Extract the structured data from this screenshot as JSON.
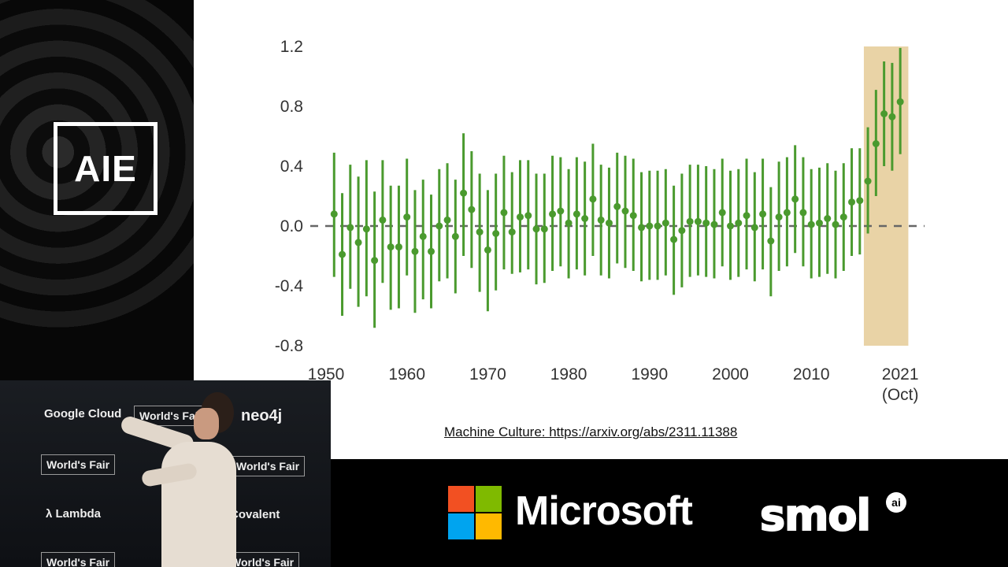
{
  "logo": {
    "text": "AIE"
  },
  "caption": {
    "text": "Machine Culture: https://arxiv.org/abs/2311.11388"
  },
  "sponsors": {
    "google": "Google Cloud",
    "worlds_fair": "World's Fair",
    "neo4j": "neo4j",
    "lambda": "λ Lambda",
    "covalent": "Covalent"
  },
  "brands": {
    "microsoft": "Microsoft",
    "smol": "smol",
    "smol_ai": "ai"
  },
  "colors": {
    "series": "#4a9a2e",
    "highlight": "#e9d3a6",
    "zero_line": "#666666"
  },
  "chart_data": {
    "type": "scatter",
    "title": "",
    "xlabel": "",
    "ylabel": "",
    "xlim": [
      1950,
      2022
    ],
    "ylim": [
      -0.8,
      1.2
    ],
    "yticks": [
      1.2,
      0.8,
      0.4,
      0.0,
      -0.4,
      -0.8
    ],
    "ytick_labels": [
      "1.2",
      "0.8",
      "0.4",
      "0.0",
      "-0.4",
      "-0.8"
    ],
    "xticks": [
      1950,
      1960,
      1970,
      1980,
      1990,
      2000,
      2010,
      2021
    ],
    "xtick_labels": [
      "1950",
      "1960",
      "1970",
      "1980",
      "1990",
      "2000",
      "2010",
      "2021"
    ],
    "xtick_sub_labels": {
      "2021": "(Oct)"
    },
    "reference_line": {
      "y": 0,
      "style": "dashed"
    },
    "highlight_span": [
      2016.5,
      2022
    ],
    "grid": false,
    "series": [
      {
        "x": [
          1951,
          1952,
          1953,
          1954,
          1955,
          1956,
          1957,
          1958,
          1959,
          1960,
          1961,
          1962,
          1963,
          1964,
          1965,
          1966,
          1967,
          1968,
          1969,
          1970,
          1971,
          1972,
          1973,
          1974,
          1975,
          1976,
          1977,
          1978,
          1979,
          1980,
          1981,
          1982,
          1983,
          1984,
          1985,
          1986,
          1987,
          1988,
          1989,
          1990,
          1991,
          1992,
          1993,
          1994,
          1995,
          1996,
          1997,
          1998,
          1999,
          2000,
          2001,
          2002,
          2003,
          2004,
          2005,
          2006,
          2007,
          2008,
          2009,
          2010,
          2011,
          2012,
          2013,
          2014,
          2015,
          2016,
          2017,
          2018,
          2019,
          2020,
          2021
        ],
        "y": [
          0.08,
          -0.19,
          -0.01,
          -0.11,
          -0.02,
          -0.23,
          0.04,
          -0.14,
          -0.14,
          0.06,
          -0.17,
          -0.07,
          -0.17,
          0.0,
          0.04,
          -0.07,
          0.22,
          0.11,
          -0.04,
          -0.16,
          -0.05,
          0.09,
          -0.04,
          0.06,
          0.07,
          -0.02,
          -0.02,
          0.08,
          0.1,
          0.02,
          0.08,
          0.05,
          0.18,
          0.04,
          0.02,
          0.13,
          0.1,
          0.07,
          -0.01,
          0.0,
          0.0,
          0.02,
          -0.09,
          -0.03,
          0.03,
          0.03,
          0.02,
          0.01,
          0.09,
          0.0,
          0.02,
          0.07,
          -0.01,
          0.08,
          -0.1,
          0.06,
          0.09,
          0.18,
          0.09,
          0.01,
          0.02,
          0.05,
          0.01,
          0.06,
          0.16,
          0.17,
          0.3,
          0.55,
          0.75,
          0.73,
          0.83
        ],
        "y_low": [
          -0.34,
          -0.6,
          -0.42,
          -0.54,
          -0.47,
          -0.68,
          -0.38,
          -0.56,
          -0.55,
          -0.33,
          -0.58,
          -0.49,
          -0.55,
          -0.37,
          -0.35,
          -0.45,
          -0.2,
          -0.28,
          -0.44,
          -0.57,
          -0.43,
          -0.29,
          -0.32,
          -0.31,
          -0.29,
          -0.39,
          -0.38,
          -0.3,
          -0.27,
          -0.35,
          -0.29,
          -0.33,
          -0.2,
          -0.33,
          -0.35,
          -0.25,
          -0.28,
          -0.3,
          -0.37,
          -0.36,
          -0.36,
          -0.33,
          -0.46,
          -0.41,
          -0.34,
          -0.33,
          -0.34,
          -0.35,
          -0.27,
          -0.36,
          -0.34,
          -0.29,
          -0.37,
          -0.29,
          -0.47,
          -0.3,
          -0.27,
          -0.18,
          -0.27,
          -0.35,
          -0.34,
          -0.32,
          -0.35,
          -0.3,
          -0.2,
          -0.19,
          -0.05,
          0.2,
          0.4,
          0.37,
          0.48
        ],
        "y_high": [
          0.49,
          0.22,
          0.41,
          0.33,
          0.44,
          0.23,
          0.44,
          0.27,
          0.27,
          0.45,
          0.24,
          0.31,
          0.21,
          0.38,
          0.42,
          0.31,
          0.62,
          0.5,
          0.35,
          0.24,
          0.35,
          0.47,
          0.36,
          0.44,
          0.44,
          0.35,
          0.35,
          0.47,
          0.46,
          0.38,
          0.46,
          0.43,
          0.55,
          0.41,
          0.39,
          0.49,
          0.47,
          0.45,
          0.36,
          0.37,
          0.37,
          0.38,
          0.27,
          0.35,
          0.41,
          0.41,
          0.4,
          0.38,
          0.45,
          0.37,
          0.38,
          0.45,
          0.36,
          0.45,
          0.26,
          0.43,
          0.46,
          0.54,
          0.46,
          0.38,
          0.39,
          0.42,
          0.37,
          0.42,
          0.52,
          0.52,
          0.66,
          0.91,
          1.1,
          1.09,
          1.19
        ]
      }
    ]
  }
}
